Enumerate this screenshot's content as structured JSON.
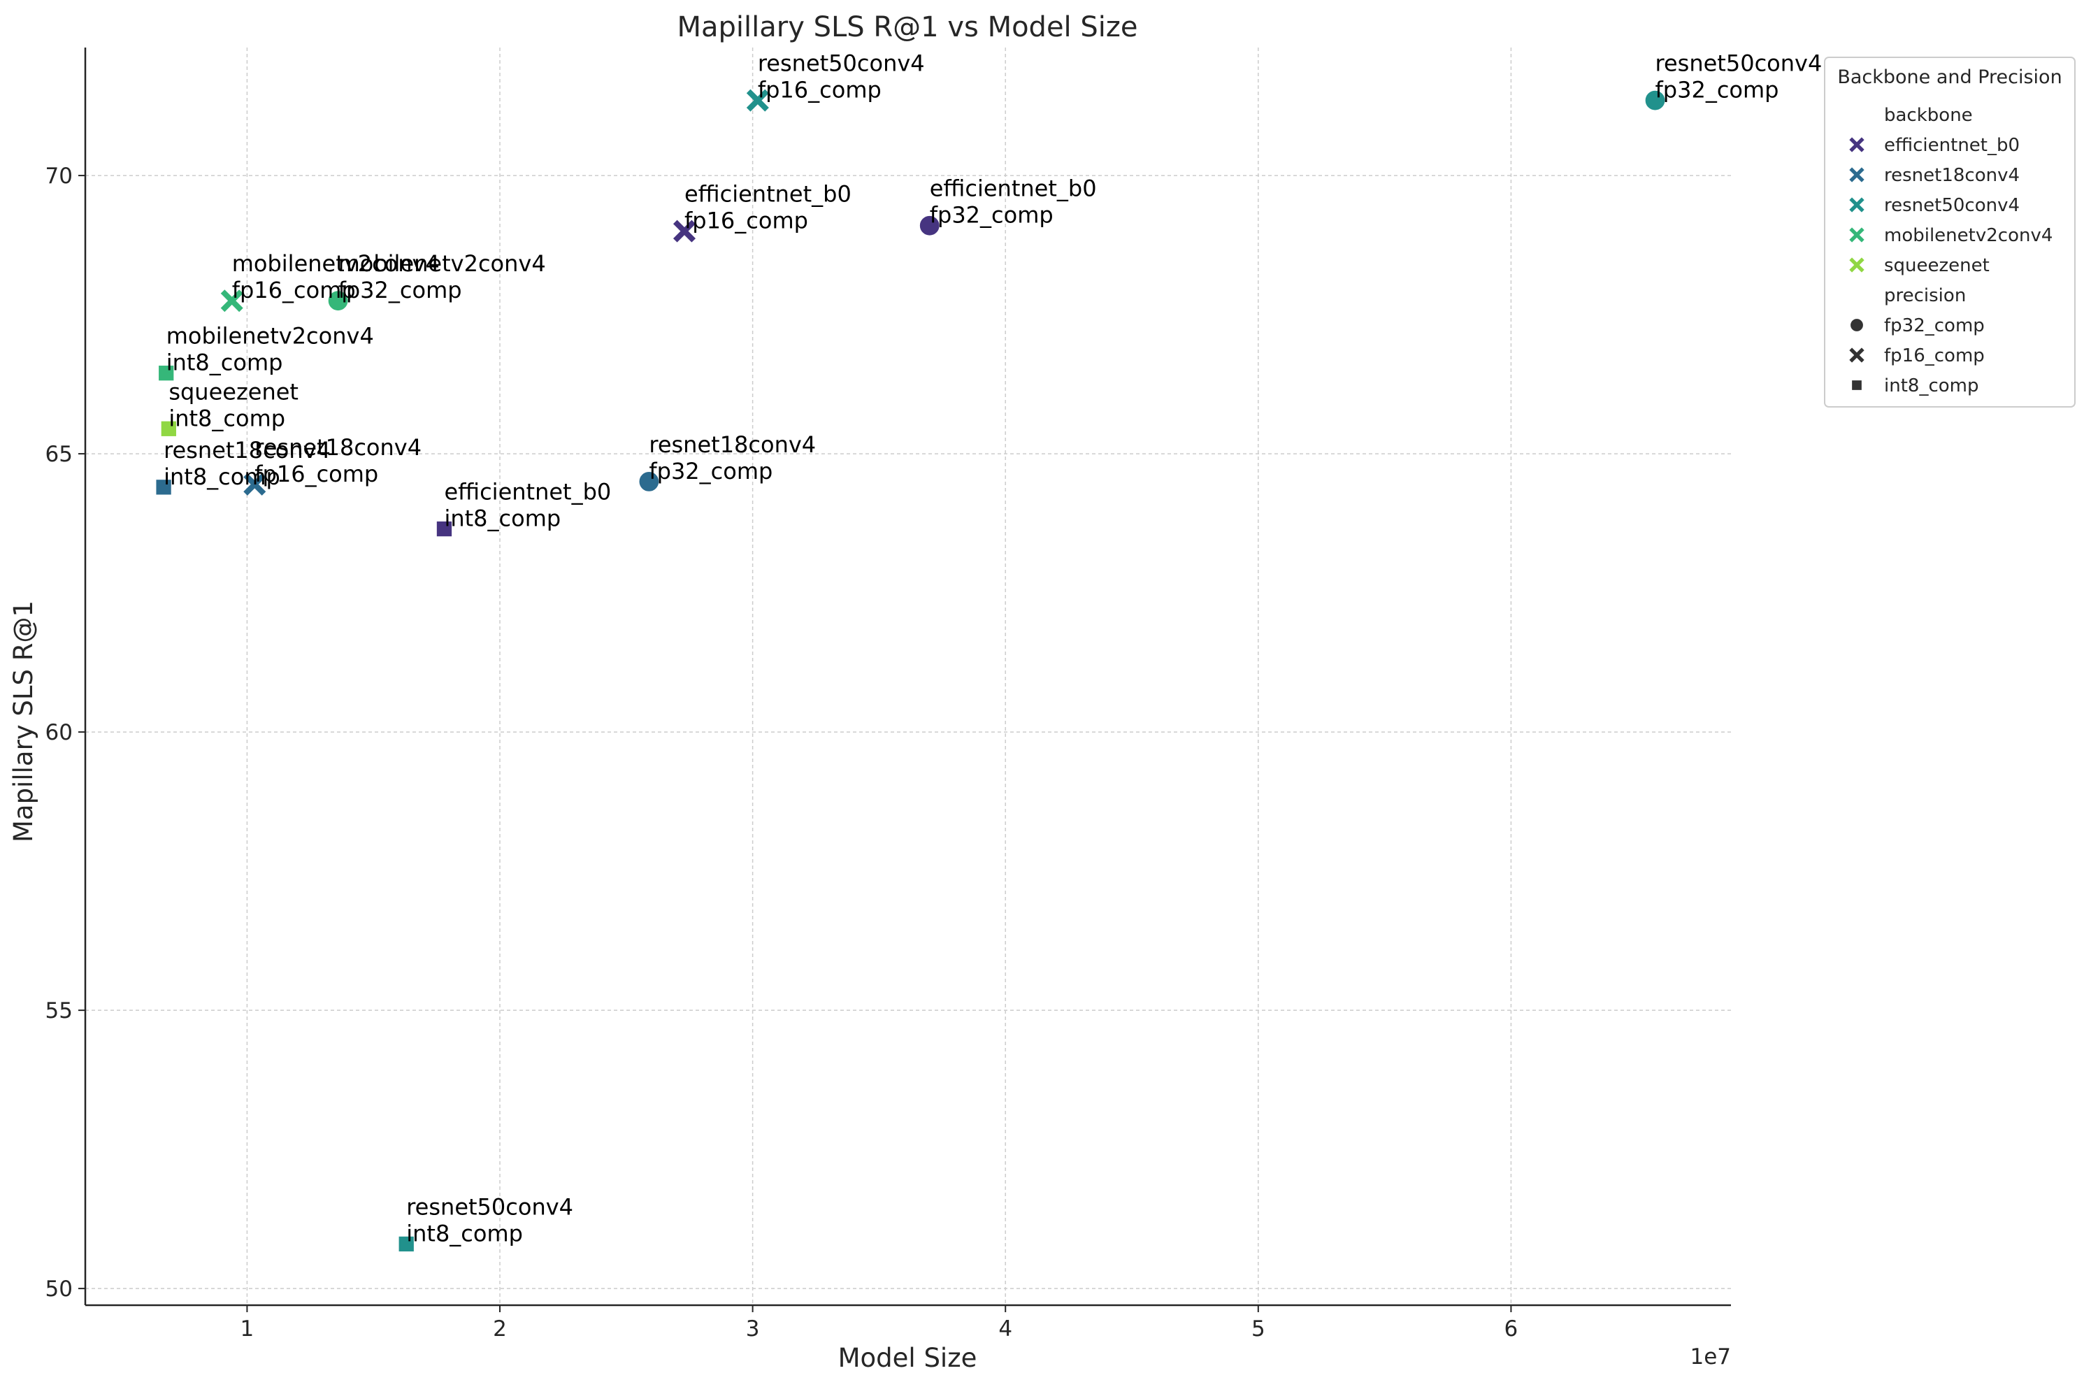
{
  "chart_data": {
    "type": "scatter",
    "title": "Mapillary SLS R@1 vs Model Size",
    "xlabel": "Model Size",
    "ylabel": "Mapillary SLS R@1",
    "x_offset_label": "1e7",
    "xlim": [
      3600000,
      68700000
    ],
    "ylim": [
      49.7,
      72.3
    ],
    "x_ticks": [
      10000000,
      20000000,
      30000000,
      40000000,
      50000000,
      60000000
    ],
    "x_tick_labels": [
      "1",
      "2",
      "3",
      "4",
      "5",
      "6"
    ],
    "y_ticks": [
      50,
      55,
      60,
      65,
      70
    ],
    "y_tick_labels": [
      "50",
      "55",
      "60",
      "65",
      "70"
    ],
    "grid": true,
    "legend": {
      "title": "Backbone and Precision",
      "placement": "top-right",
      "backbone_header": "backbone",
      "precision_header": "precision",
      "backbones": [
        {
          "name": "efficientnet_b0",
          "color": "#463480"
        },
        {
          "name": "resnet18conv4",
          "color": "#2c6b8f"
        },
        {
          "name": "resnet50conv4",
          "color": "#21918c"
        },
        {
          "name": "mobilenetv2conv4",
          "color": "#35b779"
        },
        {
          "name": "squeezenet",
          "color": "#90d743"
        }
      ],
      "precisions": [
        {
          "name": "fp32_comp",
          "marker": "circle"
        },
        {
          "name": "fp16_comp",
          "marker": "x"
        },
        {
          "name": "int8_comp",
          "marker": "square"
        }
      ]
    },
    "points": [
      {
        "backbone": "resnet50conv4",
        "precision": "fp32_comp",
        "x": 65700000,
        "y": 71.35,
        "label1": "resnet50conv4",
        "label2": "fp32_comp"
      },
      {
        "backbone": "resnet50conv4",
        "precision": "fp16_comp",
        "x": 30200000,
        "y": 71.35,
        "label1": "resnet50conv4",
        "label2": "fp16_comp"
      },
      {
        "backbone": "efficientnet_b0",
        "precision": "fp32_comp",
        "x": 37000000,
        "y": 69.1,
        "label1": "efficientnet_b0",
        "label2": "fp32_comp"
      },
      {
        "backbone": "efficientnet_b0",
        "precision": "fp16_comp",
        "x": 27300000,
        "y": 69.0,
        "label1": "efficientnet_b0",
        "label2": "fp16_comp"
      },
      {
        "backbone": "mobilenetv2conv4",
        "precision": "fp16_comp",
        "x": 9400000,
        "y": 67.75,
        "label1": "mobilenetv2conv4",
        "label2": "fp16_comp"
      },
      {
        "backbone": "mobilenetv2conv4",
        "precision": "fp32_comp",
        "x": 13600000,
        "y": 67.75,
        "label1": "mobilenetv2conv4",
        "label2": "fp32_comp"
      },
      {
        "backbone": "mobilenetv2conv4",
        "precision": "int8_comp",
        "x": 6800000,
        "y": 66.45,
        "label1": "mobilenetv2conv4",
        "label2": "int8_comp"
      },
      {
        "backbone": "squeezenet",
        "precision": "int8_comp",
        "x": 6900000,
        "y": 65.45,
        "label1": "squeezenet",
        "label2": "int8_comp"
      },
      {
        "backbone": "resnet18conv4",
        "precision": "int8_comp",
        "x": 6700000,
        "y": 64.4,
        "label1": "resnet18conv4",
        "label2": "int8_comp"
      },
      {
        "backbone": "resnet18conv4",
        "precision": "fp16_comp",
        "x": 10300000,
        "y": 64.45,
        "label1": "resnet18conv4",
        "label2": "fp16_comp"
      },
      {
        "backbone": "resnet18conv4",
        "precision": "fp32_comp",
        "x": 25900000,
        "y": 64.5,
        "label1": "resnet18conv4",
        "label2": "fp32_comp"
      },
      {
        "backbone": "efficientnet_b0",
        "precision": "int8_comp",
        "x": 17800000,
        "y": 63.65,
        "label1": "efficientnet_b0",
        "label2": "int8_comp"
      },
      {
        "backbone": "resnet50conv4",
        "precision": "int8_comp",
        "x": 16300000,
        "y": 50.8,
        "label1": "resnet50conv4",
        "label2": "int8_comp"
      }
    ]
  }
}
